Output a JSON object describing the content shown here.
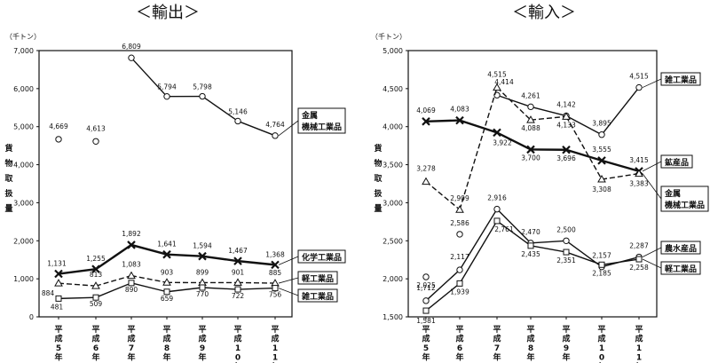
{
  "chart_data": [
    {
      "type": "line",
      "title": "＜輸出＞",
      "unit_label": "（千トン）",
      "ylabel": "貨物取扱量",
      "categories": [
        "平成5年",
        "平成6年",
        "平成7年",
        "平成8年",
        "平成9年",
        "平成10年",
        "平成11年"
      ],
      "ylim": [
        0,
        7000
      ],
      "yticks": [
        "0",
        "1,000",
        "2,000",
        "3,000",
        "4,000",
        "5,000",
        "6,000",
        "7,000"
      ],
      "series": [
        {
          "name": "金属機械工業品",
          "legend": [
            "金属",
            "機械工業品"
          ],
          "marker": "circle",
          "style": "solid",
          "values": [
            4669,
            4613,
            6809,
            5794,
            5798,
            5146,
            4764
          ],
          "labels": [
            "4,669",
            "4,613",
            "6,809",
            "5,794",
            "5,798",
            "5,146",
            "4,764"
          ]
        },
        {
          "name": "化学工業品",
          "legend": [
            "化学工業品"
          ],
          "marker": "x",
          "style": "solid-bold",
          "values": [
            1131,
            1255,
            1892,
            1641,
            1594,
            1467,
            1368
          ],
          "labels": [
            "1,131",
            "1,255",
            "1,892",
            "1,641",
            "1,594",
            "1,467",
            "1,368"
          ]
        },
        {
          "name": "軽工業品",
          "legend": [
            "軽工業品"
          ],
          "marker": "triangle",
          "style": "dashed",
          "values": [
            884,
            813,
            1083,
            903,
            899,
            901,
            885
          ],
          "labels": [
            "884",
            "813",
            "1,083",
            "903",
            "899",
            "901",
            "885"
          ]
        },
        {
          "name": "雑工業品",
          "legend": [
            "雑工業品"
          ],
          "marker": "square",
          "style": "solid",
          "values": [
            481,
            509,
            890,
            659,
            770,
            722,
            756
          ],
          "labels": [
            "481",
            "509",
            "890",
            "659",
            "770",
            "722",
            "756"
          ]
        }
      ]
    },
    {
      "type": "line",
      "title": "＜輸入＞",
      "unit_label": "（千トン）",
      "ylabel": "貨物取扱量",
      "categories": [
        "平成5年",
        "平成6年",
        "平成7年",
        "平成8年",
        "平成9年",
        "平成10年",
        "平成11年"
      ],
      "ylim": [
        1500,
        5000
      ],
      "yticks": [
        "1,500",
        "2,000",
        "2,500",
        "3,000",
        "3,500",
        "4,000",
        "4,500",
        "5,000"
      ],
      "series": [
        {
          "name": "雑工業品",
          "legend": [
            "雑工業品"
          ],
          "marker": "circle",
          "style": "solid",
          "values": [
            2025,
            2586,
            4414,
            4261,
            4142,
            3895,
            4515
          ],
          "labels": [
            "2,025",
            "2,586",
            "4,414",
            "4,261",
            "4,142",
            "3,895",
            "4,515"
          ]
        },
        {
          "name": "鉱産品",
          "legend": [
            "鉱産品"
          ],
          "marker": "x",
          "style": "solid-bold",
          "values": [
            4069,
            4083,
            3922,
            3700,
            3696,
            3555,
            3415
          ],
          "labels": [
            "4,069",
            "4,083",
            "3,922",
            "3,700",
            "3,696",
            "3,555",
            "3,415"
          ]
        },
        {
          "name": "金属機械工業品",
          "legend": [
            "金属",
            "機械工業品"
          ],
          "marker": "triangle",
          "style": "dashed",
          "values": [
            3278,
            2909,
            4515,
            4088,
            4133,
            3308,
            3383
          ],
          "labels": [
            "3,278",
            "2,909",
            "4,515",
            "4,088",
            "4,133",
            "3,308",
            "3,383"
          ]
        },
        {
          "name": "農水産品",
          "legend": [
            "農水産品"
          ],
          "marker": "circle",
          "style": "solid",
          "values": [
            1712,
            2117,
            2916,
            2470,
            2500,
            2157,
            2287
          ],
          "labels": [
            "1,712",
            "2,117",
            "2,916",
            "2,470",
            "2,500",
            "2,157",
            "2,287"
          ]
        },
        {
          "name": "軽工業品",
          "legend": [
            "軽工業品"
          ],
          "marker": "square",
          "style": "solid",
          "values": [
            1581,
            1939,
            2761,
            2435,
            2351,
            2185,
            2258
          ],
          "labels": [
            "1,581",
            "1,939",
            "2,761",
            "2,435",
            "2,351",
            "2,185",
            "2,258"
          ]
        }
      ]
    }
  ]
}
